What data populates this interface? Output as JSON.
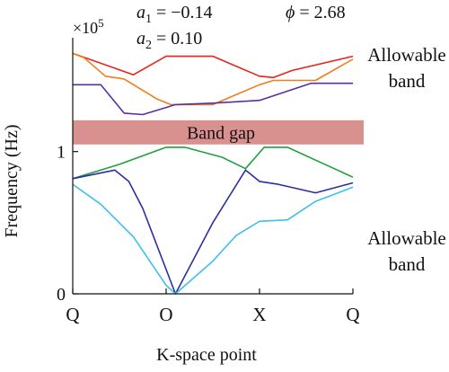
{
  "chart_data": {
    "type": "line",
    "xlabel": "K-space point",
    "ylabel": "Frequency (Hz)",
    "y_multiplier": "×10",
    "y_multiplier_exp": "5",
    "x_tick_labels": [
      "Q",
      "O",
      "X",
      "Q"
    ],
    "y_ticks": [
      {
        "value": 0,
        "label": "0"
      },
      {
        "value": 1,
        "label": "1"
      }
    ],
    "xlim": [
      0,
      3
    ],
    "ylim": [
      0,
      1.8
    ],
    "grid": false,
    "params": {
      "a1": {
        "name": "a",
        "sub": "1",
        "value": "−0.14"
      },
      "a2": {
        "name": "a",
        "sub": "2",
        "value": "0.10"
      },
      "phi": {
        "name": "ϕ",
        "value": "2.68"
      }
    },
    "band_gap": {
      "label": "Band gap",
      "range": [
        1.05,
        1.22
      ],
      "color": "#d9918f"
    },
    "region_labels": {
      "upper": [
        "Allowable",
        "band"
      ],
      "lower": [
        "Allowable",
        "band"
      ]
    },
    "series": [
      {
        "color": "#e8231c",
        "points": [
          [
            0,
            1.69
          ],
          [
            0.65,
            1.54
          ],
          [
            1,
            1.67
          ],
          [
            1.5,
            1.67
          ],
          [
            2,
            1.53
          ],
          [
            2.15,
            1.52
          ],
          [
            2.35,
            1.57
          ],
          [
            3,
            1.67
          ]
        ]
      },
      {
        "color": "#f07d1e",
        "points": [
          [
            0,
            1.69
          ],
          [
            0.12,
            1.66
          ],
          [
            0.35,
            1.53
          ],
          [
            0.55,
            1.51
          ],
          [
            0.9,
            1.37
          ],
          [
            1.05,
            1.33
          ],
          [
            1.5,
            1.33
          ],
          [
            2,
            1.47
          ],
          [
            2.15,
            1.5
          ],
          [
            2.6,
            1.5
          ],
          [
            3,
            1.65
          ]
        ]
      },
      {
        "color": "#5a2fa6",
        "points": [
          [
            0,
            1.47
          ],
          [
            0.3,
            1.47
          ],
          [
            0.55,
            1.27
          ],
          [
            0.75,
            1.26
          ],
          [
            1,
            1.31
          ],
          [
            1.1,
            1.33
          ],
          [
            1.5,
            1.34
          ],
          [
            2,
            1.36
          ],
          [
            2.55,
            1.48
          ],
          [
            3,
            1.48
          ]
        ]
      },
      {
        "color": "#1ea03c",
        "points": [
          [
            0,
            0.81
          ],
          [
            0.5,
            0.91
          ],
          [
            1,
            1.03
          ],
          [
            1.2,
            1.03
          ],
          [
            1.6,
            0.96
          ],
          [
            1.85,
            0.88
          ],
          [
            2.05,
            1.03
          ],
          [
            2.3,
            1.03
          ],
          [
            2.6,
            0.94
          ],
          [
            3,
            0.82
          ]
        ]
      },
      {
        "color": "#2b2fa0",
        "points": [
          [
            0,
            0.81
          ],
          [
            0.45,
            0.87
          ],
          [
            0.6,
            0.79
          ],
          [
            0.75,
            0.6
          ],
          [
            1.1,
            0.0
          ],
          [
            1.5,
            0.5
          ],
          [
            1.85,
            0.87
          ],
          [
            2,
            0.79
          ],
          [
            2.2,
            0.77
          ],
          [
            2.6,
            0.71
          ],
          [
            3,
            0.78
          ]
        ]
      },
      {
        "color": "#3fc0e8",
        "points": [
          [
            0,
            0.77
          ],
          [
            0.3,
            0.63
          ],
          [
            0.65,
            0.4
          ],
          [
            1,
            0.06
          ],
          [
            1.1,
            0.0
          ],
          [
            1.5,
            0.23
          ],
          [
            1.75,
            0.41
          ],
          [
            2,
            0.51
          ],
          [
            2.3,
            0.52
          ],
          [
            2.6,
            0.65
          ],
          [
            3,
            0.75
          ]
        ]
      }
    ]
  }
}
